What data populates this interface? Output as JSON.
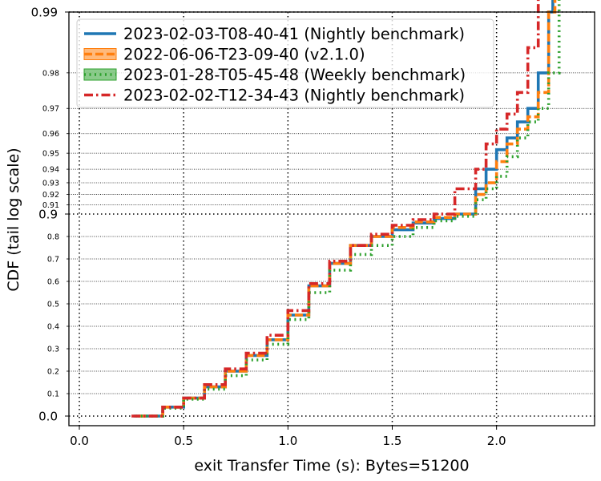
{
  "chart_data": {
    "type": "line",
    "xlabel": "exit Transfer Time (s): Bytes=51200",
    "ylabel": "CDF (tail log scale)",
    "xlim": [
      -0.05,
      2.47
    ],
    "x_ticks": [
      {
        "value": 0.0,
        "label": "0.0"
      },
      {
        "value": 0.5,
        "label": "0.5"
      },
      {
        "value": 1.0,
        "label": "1.0"
      },
      {
        "value": 1.5,
        "label": "1.5"
      },
      {
        "value": 2.0,
        "label": "2.0"
      }
    ],
    "y_ticks_major": [
      {
        "value": 0.0,
        "label": "0.0"
      },
      {
        "value": 0.9,
        "label": "0.9"
      },
      {
        "value": 0.99,
        "label": "0.99"
      }
    ],
    "y_ticks_minor": [
      {
        "value": 0.1,
        "label": "0.1"
      },
      {
        "value": 0.2,
        "label": "0.2"
      },
      {
        "value": 0.3,
        "label": "0.3"
      },
      {
        "value": 0.4,
        "label": "0.4"
      },
      {
        "value": 0.5,
        "label": "0.5"
      },
      {
        "value": 0.6,
        "label": "0.6"
      },
      {
        "value": 0.7,
        "label": "0.7"
      },
      {
        "value": 0.8,
        "label": "0.8"
      },
      {
        "value": 0.91,
        "label": "0.91"
      },
      {
        "value": 0.92,
        "label": "0.92"
      },
      {
        "value": 0.93,
        "label": "0.93"
      },
      {
        "value": 0.94,
        "label": "0.94"
      },
      {
        "value": 0.95,
        "label": "0.95"
      },
      {
        "value": 0.96,
        "label": "0.96"
      },
      {
        "value": 0.97,
        "label": "0.97"
      },
      {
        "value": 0.98,
        "label": "0.98"
      }
    ],
    "grid": true,
    "legend_position": "top-left",
    "series": [
      {
        "name": "2023-02-03-T08-40-41 (Nightly benchmark)",
        "color": "#1f77b4",
        "dash": "solid",
        "points": [
          [
            0.26,
            0.0
          ],
          [
            0.4,
            0.04
          ],
          [
            0.5,
            0.08
          ],
          [
            0.6,
            0.13
          ],
          [
            0.7,
            0.2
          ],
          [
            0.8,
            0.27
          ],
          [
            0.9,
            0.34
          ],
          [
            1.0,
            0.45
          ],
          [
            1.1,
            0.58
          ],
          [
            1.2,
            0.68
          ],
          [
            1.3,
            0.76
          ],
          [
            1.4,
            0.8
          ],
          [
            1.5,
            0.83
          ],
          [
            1.6,
            0.86
          ],
          [
            1.7,
            0.88
          ],
          [
            1.8,
            0.9
          ],
          [
            1.9,
            0.925
          ],
          [
            1.95,
            0.94
          ],
          [
            2.0,
            0.952
          ],
          [
            2.05,
            0.958
          ],
          [
            2.1,
            0.965
          ],
          [
            2.15,
            0.97
          ],
          [
            2.2,
            0.98
          ],
          [
            2.25,
            0.99
          ],
          [
            2.27,
            0.993
          ]
        ]
      },
      {
        "name": "2022-06-06-T23-09-40 (v2.1.0)",
        "color": "#ff7f0e",
        "dash": "dashed",
        "points": [
          [
            0.28,
            0.0
          ],
          [
            0.4,
            0.04
          ],
          [
            0.5,
            0.08
          ],
          [
            0.6,
            0.13
          ],
          [
            0.7,
            0.2
          ],
          [
            0.8,
            0.27
          ],
          [
            0.9,
            0.34
          ],
          [
            1.0,
            0.45
          ],
          [
            1.1,
            0.58
          ],
          [
            1.2,
            0.68
          ],
          [
            1.3,
            0.76
          ],
          [
            1.4,
            0.8
          ],
          [
            1.5,
            0.84
          ],
          [
            1.6,
            0.865
          ],
          [
            1.7,
            0.885
          ],
          [
            1.8,
            0.9
          ],
          [
            1.9,
            0.92
          ],
          [
            1.95,
            0.93
          ],
          [
            2.0,
            0.945
          ],
          [
            2.05,
            0.955
          ],
          [
            2.1,
            0.962
          ],
          [
            2.15,
            0.967
          ],
          [
            2.2,
            0.975
          ],
          [
            2.25,
            0.99
          ],
          [
            2.28,
            0.993
          ]
        ]
      },
      {
        "name": "2023-01-28-T05-45-48 (Weekly benchmark)",
        "color": "#2ca02c",
        "dash": "dotted",
        "points": [
          [
            0.27,
            0.0
          ],
          [
            0.4,
            0.035
          ],
          [
            0.5,
            0.075
          ],
          [
            0.6,
            0.12
          ],
          [
            0.7,
            0.18
          ],
          [
            0.8,
            0.25
          ],
          [
            0.9,
            0.32
          ],
          [
            1.0,
            0.43
          ],
          [
            1.1,
            0.55
          ],
          [
            1.2,
            0.65
          ],
          [
            1.3,
            0.72
          ],
          [
            1.4,
            0.76
          ],
          [
            1.5,
            0.8
          ],
          [
            1.6,
            0.84
          ],
          [
            1.7,
            0.87
          ],
          [
            1.8,
            0.89
          ],
          [
            1.9,
            0.915
          ],
          [
            1.95,
            0.925
          ],
          [
            2.0,
            0.935
          ],
          [
            2.05,
            0.948
          ],
          [
            2.1,
            0.958
          ],
          [
            2.15,
            0.965
          ],
          [
            2.2,
            0.97
          ],
          [
            2.25,
            0.98
          ],
          [
            2.3,
            0.993
          ]
        ]
      },
      {
        "name": "2023-02-02-T12-34-43 (Nightly benchmark)",
        "color": "#d62728",
        "dash": "dashdot",
        "points": [
          [
            0.25,
            0.0
          ],
          [
            0.4,
            0.04
          ],
          [
            0.5,
            0.08
          ],
          [
            0.6,
            0.14
          ],
          [
            0.7,
            0.21
          ],
          [
            0.8,
            0.28
          ],
          [
            0.9,
            0.36
          ],
          [
            1.0,
            0.47
          ],
          [
            1.1,
            0.59
          ],
          [
            1.2,
            0.69
          ],
          [
            1.3,
            0.76
          ],
          [
            1.4,
            0.81
          ],
          [
            1.5,
            0.85
          ],
          [
            1.6,
            0.875
          ],
          [
            1.7,
            0.9
          ],
          [
            1.8,
            0.925
          ],
          [
            1.9,
            0.94
          ],
          [
            1.95,
            0.955
          ],
          [
            2.0,
            0.962
          ],
          [
            2.05,
            0.968
          ],
          [
            2.1,
            0.975
          ],
          [
            2.15,
            0.985
          ],
          [
            2.2,
            0.993
          ]
        ]
      }
    ]
  }
}
